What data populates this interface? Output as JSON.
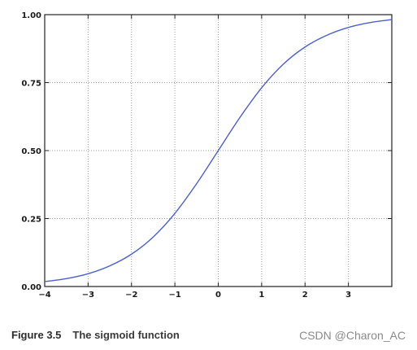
{
  "chart_data": {
    "type": "line",
    "title": "",
    "xlabel": "",
    "ylabel": "",
    "xlim": [
      -4,
      4
    ],
    "ylim": [
      0,
      1
    ],
    "grid": true,
    "x_ticks": [
      -4,
      -3,
      -2,
      -1,
      0,
      1,
      2,
      3
    ],
    "x_tick_labels": [
      "−4",
      "−3",
      "−2",
      "−1",
      "0",
      "1",
      "2",
      "3"
    ],
    "y_ticks": [
      0,
      0.25,
      0.5,
      0.75,
      1.0
    ],
    "y_tick_labels": [
      "0.00",
      "0.25",
      "0.50",
      "0.75",
      "1.00"
    ],
    "series": [
      {
        "color": "#4a5fd0",
        "x": [
          -4,
          -3.5,
          -3,
          -2.5,
          -2,
          -1.5,
          -1,
          -0.5,
          0,
          0.5,
          1,
          1.5,
          2,
          2.5,
          3,
          3.5,
          4
        ],
        "y": [
          0.018,
          0.029,
          0.047,
          0.076,
          0.119,
          0.182,
          0.269,
          0.378,
          0.5,
          0.622,
          0.731,
          0.818,
          0.881,
          0.924,
          0.953,
          0.971,
          0.982
        ]
      }
    ]
  },
  "caption": {
    "figure_label": "Figure 3.5",
    "figure_title": "The sigmoid function"
  },
  "watermark": "CSDN @Charon_AC"
}
